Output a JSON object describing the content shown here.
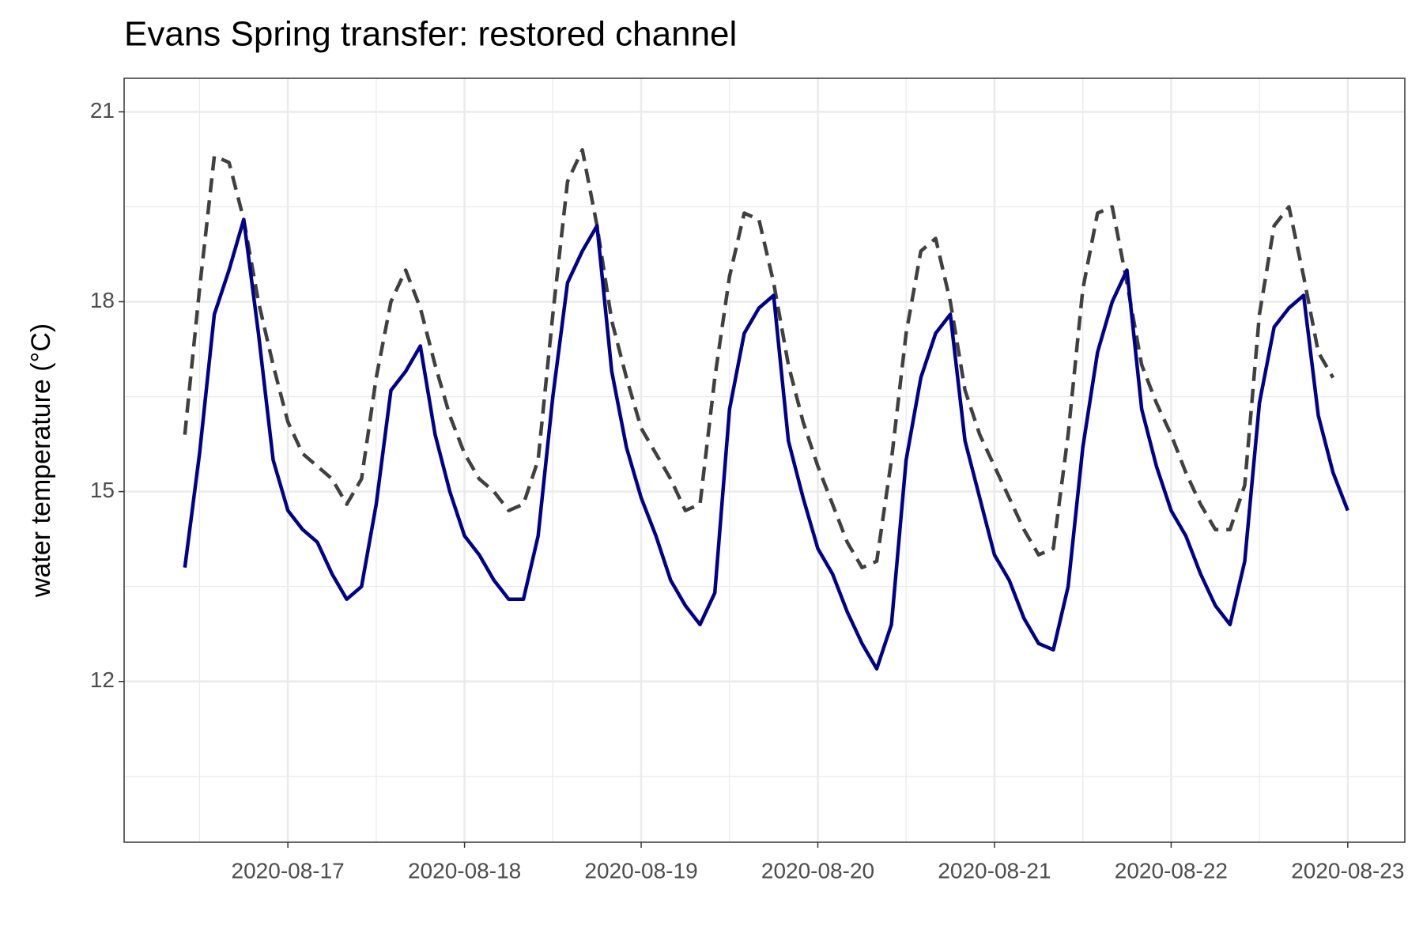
{
  "chart_data": {
    "type": "line",
    "title": "Evans Spring transfer: restored channel",
    "y_label": "water temperature (°C)",
    "x": [
      "2020-08-16T10:00",
      "2020-08-16T12:00",
      "2020-08-16T14:00",
      "2020-08-16T16:00",
      "2020-08-16T18:00",
      "2020-08-16T20:00",
      "2020-08-16T22:00",
      "2020-08-17T00:00",
      "2020-08-17T02:00",
      "2020-08-17T04:00",
      "2020-08-17T06:00",
      "2020-08-17T08:00",
      "2020-08-17T10:00",
      "2020-08-17T12:00",
      "2020-08-17T14:00",
      "2020-08-17T16:00",
      "2020-08-17T18:00",
      "2020-08-17T20:00",
      "2020-08-17T22:00",
      "2020-08-18T00:00",
      "2020-08-18T02:00",
      "2020-08-18T04:00",
      "2020-08-18T06:00",
      "2020-08-18T08:00",
      "2020-08-18T10:00",
      "2020-08-18T12:00",
      "2020-08-18T14:00",
      "2020-08-18T16:00",
      "2020-08-18T18:00",
      "2020-08-18T20:00",
      "2020-08-18T22:00",
      "2020-08-19T00:00",
      "2020-08-19T02:00",
      "2020-08-19T04:00",
      "2020-08-19T06:00",
      "2020-08-19T08:00",
      "2020-08-19T10:00",
      "2020-08-19T12:00",
      "2020-08-19T14:00",
      "2020-08-19T16:00",
      "2020-08-19T18:00",
      "2020-08-19T20:00",
      "2020-08-19T22:00",
      "2020-08-20T00:00",
      "2020-08-20T02:00",
      "2020-08-20T04:00",
      "2020-08-20T06:00",
      "2020-08-20T08:00",
      "2020-08-20T10:00",
      "2020-08-20T12:00",
      "2020-08-20T14:00",
      "2020-08-20T16:00",
      "2020-08-20T18:00",
      "2020-08-20T20:00",
      "2020-08-20T22:00",
      "2020-08-21T00:00",
      "2020-08-21T02:00",
      "2020-08-21T04:00",
      "2020-08-21T06:00",
      "2020-08-21T08:00",
      "2020-08-21T10:00",
      "2020-08-21T12:00",
      "2020-08-21T14:00",
      "2020-08-21T16:00",
      "2020-08-21T18:00",
      "2020-08-21T20:00",
      "2020-08-21T22:00",
      "2020-08-22T00:00",
      "2020-08-22T02:00",
      "2020-08-22T04:00",
      "2020-08-22T06:00",
      "2020-08-22T08:00",
      "2020-08-22T10:00",
      "2020-08-22T12:00",
      "2020-08-22T14:00",
      "2020-08-22T16:00",
      "2020-08-22T18:00",
      "2020-08-22T20:00",
      "2020-08-22T22:00",
      "2020-08-23T00:00"
    ],
    "series": [
      {
        "color": "#404040",
        "linestyle": "dashed",
        "values": [
          15.9,
          18.2,
          20.3,
          20.2,
          19.3,
          18.0,
          17.0,
          16.1,
          15.6,
          15.4,
          15.2,
          14.8,
          15.2,
          16.8,
          18.0,
          18.5,
          17.9,
          17.0,
          16.2,
          15.6,
          15.2,
          15.0,
          14.7,
          14.8,
          15.5,
          17.8,
          19.9,
          20.4,
          19.2,
          17.7,
          16.8,
          16.0,
          15.6,
          15.2,
          14.7,
          14.8,
          16.8,
          18.4,
          19.4,
          19.3,
          18.3,
          17.0,
          16.1,
          15.4,
          14.8,
          14.2,
          13.8,
          13.9,
          15.5,
          17.5,
          18.8,
          19.0,
          18.0,
          16.6,
          15.9,
          15.4,
          14.9,
          14.4,
          14.0,
          14.1,
          15.9,
          18.2,
          19.4,
          19.5,
          18.3,
          17.0,
          16.4,
          15.9,
          15.3,
          14.8,
          14.4,
          14.4,
          15.1,
          17.8,
          19.2,
          19.5,
          18.4,
          17.2,
          16.8,
          null
        ]
      },
      {
        "color": "#00008b",
        "linestyle": "solid",
        "values": [
          13.8,
          15.6,
          17.8,
          18.5,
          19.3,
          17.5,
          15.5,
          14.7,
          14.4,
          14.2,
          13.7,
          13.3,
          13.5,
          14.8,
          16.6,
          16.9,
          17.3,
          15.9,
          15.0,
          14.3,
          14.0,
          13.6,
          13.3,
          13.3,
          14.3,
          16.5,
          18.3,
          18.8,
          19.2,
          16.9,
          15.7,
          14.9,
          14.3,
          13.6,
          13.2,
          12.9,
          13.4,
          16.3,
          17.5,
          17.9,
          18.1,
          15.8,
          14.9,
          14.1,
          13.7,
          13.1,
          12.6,
          12.2,
          12.9,
          15.5,
          16.8,
          17.5,
          17.8,
          15.8,
          14.9,
          14.0,
          13.6,
          13.0,
          12.6,
          12.5,
          13.5,
          15.7,
          17.2,
          18.0,
          18.5,
          16.3,
          15.4,
          14.7,
          14.3,
          13.7,
          13.2,
          12.9,
          13.9,
          16.4,
          17.6,
          17.9,
          18.1,
          16.2,
          15.3,
          14.7
        ]
      }
    ],
    "xlim": [
      "2020-08-16T01:45",
      "2020-08-23T07:45"
    ],
    "xticks": [
      "2020-08-17",
      "2020-08-18",
      "2020-08-19",
      "2020-08-20",
      "2020-08-21",
      "2020-08-22",
      "2020-08-23"
    ],
    "minor_xticks": [
      "2020-08-16T12:00",
      "2020-08-17T12:00",
      "2020-08-18T12:00",
      "2020-08-19T12:00",
      "2020-08-20T12:00",
      "2020-08-21T12:00",
      "2020-08-22T12:00"
    ],
    "ylim": [
      9.46,
      21.53
    ],
    "yticks": [
      12,
      15,
      18,
      21
    ],
    "minor_yticks": [
      10.5,
      13.5,
      16.5,
      19.5
    ],
    "grid": true
  }
}
